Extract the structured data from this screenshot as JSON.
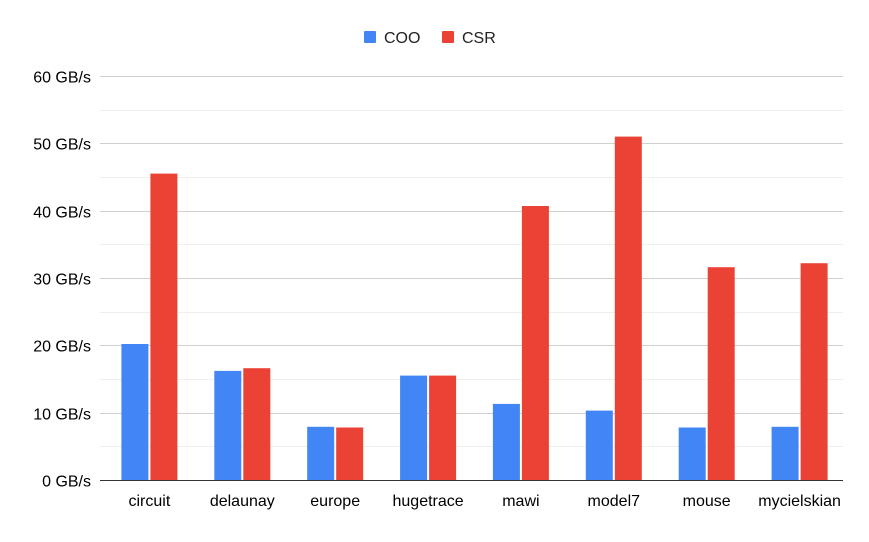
{
  "chart_data": {
    "type": "bar",
    "title": "",
    "xlabel": "",
    "ylabel": "",
    "categories": [
      "circuit",
      "delaunay",
      "europe",
      "hugetrace",
      "mawi",
      "model7",
      "mouse",
      "mycielskian"
    ],
    "series": [
      {
        "name": "COO",
        "color": "#4285f4",
        "values": [
          20.2,
          16.2,
          7.9,
          15.5,
          11.3,
          10.3,
          7.8,
          7.9
        ]
      },
      {
        "name": "CSR",
        "color": "#ea4335",
        "values": [
          45.5,
          16.6,
          7.8,
          15.5,
          40.7,
          51.0,
          31.6,
          32.2
        ]
      }
    ],
    "ylim": [
      0,
      60
    ],
    "yticks": [
      0,
      10,
      20,
      30,
      40,
      50,
      60
    ],
    "ytick_labels": [
      "0 GB/s",
      "10 GB/s",
      "20 GB/s",
      "30 GB/s",
      "40 GB/s",
      "50 GB/s",
      "60 GB/s"
    ],
    "minor_grid": true,
    "grid": true,
    "legend_position": "top-center"
  }
}
